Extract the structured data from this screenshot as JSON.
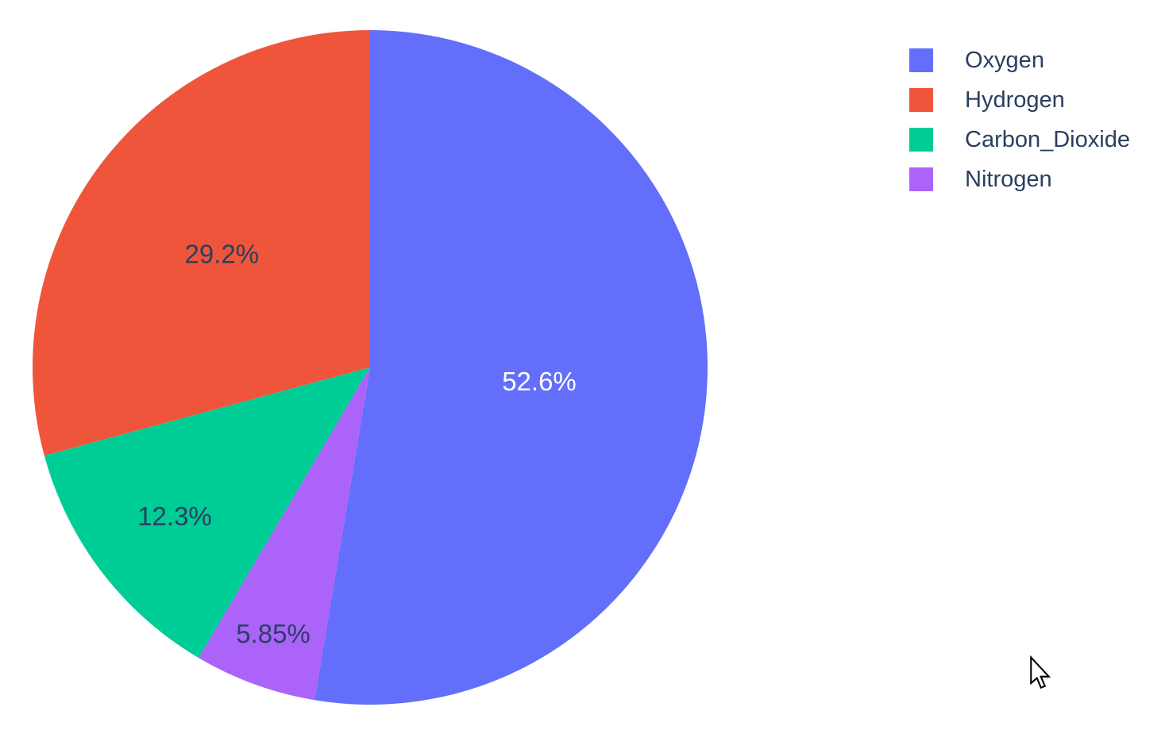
{
  "page": {
    "background_color": "#ffffff",
    "text_color": "#2a3f5f"
  },
  "chart_data": {
    "type": "pie",
    "title": "",
    "labels": [
      "Oxygen",
      "Hydrogen",
      "Carbon_Dioxide",
      "Nitrogen"
    ],
    "values": [
      52.6,
      29.2,
      12.3,
      5.85
    ],
    "percent_labels": [
      "52.6%",
      "29.2%",
      "12.3%",
      "5.85%"
    ],
    "colors": [
      "#636EFA",
      "#EF553B",
      "#00CC96",
      "#AB63FA"
    ],
    "label_text_colors": [
      "#FFFFFF",
      "#2A3F5F",
      "#2A3F5F",
      "#2A3F5F"
    ],
    "legend_position": "top-right",
    "layout_hints": {
      "first_slice_start": "12-oclock",
      "first_slice_direction": "clockwise",
      "remaining_slices_direction": "counterclockwise",
      "label_radius_fractions": [
        0.503,
        0.553,
        0.728,
        0.84
      ],
      "grid": false
    }
  },
  "legend": {
    "items": [
      {
        "label": "Oxygen"
      },
      {
        "label": "Hydrogen"
      },
      {
        "label": "Carbon_Dioxide"
      },
      {
        "label": "Nitrogen"
      }
    ]
  },
  "cursor": {
    "visible": true,
    "shape": "arrow-pointer"
  }
}
